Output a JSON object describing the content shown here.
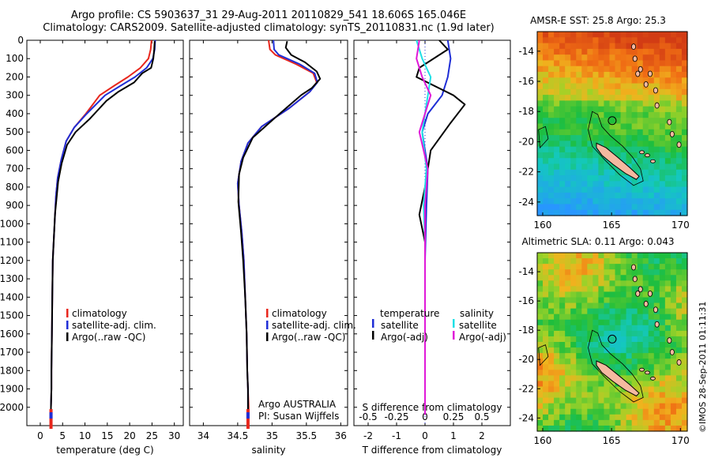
{
  "header": {
    "line1": "Argo profile: CS 5903637_31 29-Aug-2011 20110829_541 18.606S 165.046E",
    "line2": "Climatology: CARS2009. Satellite-adjusted climatology: synTS_20110831.nc (1.9d later)"
  },
  "credit": "©IMOS 28-Sep-2011 01:11:31",
  "colors": {
    "climatology": "#e8261c",
    "satellite": "#1f2ed6",
    "argo": "#000000",
    "sat_salinity": "#1fe0e6",
    "argo_salinity": "#e018d8"
  },
  "chart_data": [
    {
      "type": "line",
      "id": "temperature",
      "xlabel": "temperature (deg C)",
      "ylabel": "",
      "xlim": [
        -3,
        32
      ],
      "ylim": [
        2100,
        0
      ],
      "xticks": [
        0,
        5,
        10,
        15,
        20,
        25,
        30
      ],
      "yticks": [
        0,
        100,
        200,
        300,
        400,
        500,
        600,
        700,
        800,
        900,
        1000,
        1100,
        1200,
        1300,
        1400,
        1500,
        1600,
        1700,
        1800,
        1900,
        2000
      ],
      "legend": [
        "climatology",
        "satellite-adj. clim.",
        "Argo(..raw -QC)"
      ],
      "series": [
        {
          "name": "climatology",
          "color": "#e8261c",
          "x": [
            24.9,
            24.7,
            24.2,
            22.4,
            19.6,
            16.4,
            13.3,
            10.2,
            7.6,
            5.8,
            4.7,
            3.9,
            3.5,
            3.2,
            3.0,
            2.8,
            2.7,
            2.6,
            2.5,
            2.5,
            2.4,
            2.4
          ],
          "y": [
            0,
            50,
            100,
            150,
            200,
            250,
            300,
            400,
            475,
            550,
            650,
            750,
            850,
            1000,
            1100,
            1200,
            1400,
            1600,
            1800,
            1900,
            2000,
            2040
          ]
        },
        {
          "name": "satellite-adj. clim.",
          "color": "#1f2ed6",
          "x": [
            25.7,
            25.6,
            25.2,
            23.8,
            21.2,
            17.8,
            14.5,
            10.4,
            7.6,
            5.8,
            4.7,
            3.9,
            3.5,
            3.2,
            3.0,
            2.8,
            2.7,
            2.6,
            2.5,
            2.5,
            2.4,
            2.4
          ],
          "y": [
            0,
            50,
            100,
            150,
            200,
            250,
            300,
            400,
            475,
            550,
            650,
            750,
            850,
            1000,
            1100,
            1200,
            1400,
            1600,
            1800,
            1900,
            2000,
            2040
          ]
        },
        {
          "name": "Argo(..raw -QC)",
          "color": "#000000",
          "x": [
            25.6,
            25.5,
            25.3,
            24.8,
            22.8,
            21.0,
            17.5,
            14.8,
            11.0,
            7.9,
            6.0,
            4.8,
            4.0,
            3.3,
            3.1,
            2.8,
            2.7,
            2.6,
            2.5,
            2.5,
            2.4,
            2.4
          ],
          "y": [
            5,
            50,
            100,
            150,
            180,
            230,
            280,
            330,
            430,
            500,
            570,
            670,
            770,
            950,
            1050,
            1200,
            1400,
            1600,
            1800,
            1900,
            2000,
            2040
          ]
        }
      ]
    },
    {
      "type": "line",
      "id": "salinity",
      "xlabel": "salinity",
      "ylabel": "",
      "xlim": [
        33.8,
        36.1
      ],
      "ylim": [
        2100,
        0
      ],
      "xticks": [
        34,
        34.5,
        35,
        35.5,
        36
      ],
      "legend": [
        "climatology",
        "satellite-adj. clim.",
        "Argo(..raw -QC)"
      ],
      "annotation": [
        "Argo AUSTRALIA",
        "PI: Susan Wijffels"
      ],
      "series": [
        {
          "name": "climatology",
          "color": "#e8261c",
          "x": [
            34.95,
            34.97,
            35.05,
            35.35,
            35.6,
            35.65,
            35.55,
            35.25,
            34.85,
            34.65,
            34.55,
            34.5,
            34.52,
            34.56,
            34.59,
            34.61,
            34.63,
            34.64,
            34.65,
            34.66,
            34.66
          ],
          "y": [
            0,
            50,
            80,
            130,
            180,
            230,
            280,
            370,
            470,
            560,
            660,
            780,
            900,
            1050,
            1200,
            1400,
            1600,
            1800,
            1900,
            2000,
            2040
          ]
        },
        {
          "name": "satellite-adj. clim.",
          "color": "#1f2ed6",
          "x": [
            35.02,
            35.03,
            35.1,
            35.4,
            35.62,
            35.66,
            35.55,
            35.25,
            34.85,
            34.65,
            34.55,
            34.5,
            34.52,
            34.56,
            34.59,
            34.61,
            34.63,
            34.64,
            34.65,
            34.65,
            34.65
          ],
          "y": [
            0,
            50,
            80,
            130,
            180,
            230,
            280,
            370,
            470,
            560,
            660,
            780,
            900,
            1050,
            1200,
            1400,
            1600,
            1800,
            1900,
            2000,
            2040
          ]
        },
        {
          "name": "Argo(..raw -QC)",
          "color": "#000000",
          "x": [
            35.22,
            35.2,
            35.28,
            35.48,
            35.65,
            35.7,
            35.58,
            35.42,
            35.05,
            34.72,
            34.58,
            34.52,
            34.51,
            34.55,
            34.58,
            34.61,
            34.63,
            34.64,
            34.65,
            34.65,
            34.65
          ],
          "y": [
            5,
            40,
            80,
            120,
            170,
            210,
            260,
            300,
            420,
            530,
            640,
            730,
            880,
            1050,
            1200,
            1400,
            1600,
            1800,
            1900,
            2000,
            2040
          ]
        }
      ]
    },
    {
      "type": "line",
      "id": "difference",
      "xlabel": "T difference from climatology",
      "xlabel_top": "S difference from climatology",
      "xlim": [
        -2.5,
        3
      ],
      "ylim": [
        2100,
        0
      ],
      "xticks": [
        -2,
        -1,
        0,
        1,
        2
      ],
      "sticks_labels": [
        "-0.5",
        "-0.25",
        "0",
        "0.25",
        "0.5"
      ],
      "sticks_values": [
        -2,
        -1,
        0,
        1,
        2
      ],
      "legend_temperature": {
        "title": "temperature",
        "items": [
          "satellite",
          "Argo(-adj)"
        ]
      },
      "legend_salinity": {
        "title": "salinity",
        "items": [
          "satellite",
          "Argo(-adj)"
        ]
      },
      "series": [
        {
          "name": "T satellite",
          "color": "#1f2ed6",
          "x": [
            0.8,
            0.9,
            0.8,
            0.6,
            0.1,
            -0.1,
            0.1,
            0.05,
            0,
            0,
            0,
            0,
            0
          ],
          "y": [
            0,
            100,
            200,
            300,
            400,
            500,
            700,
            900,
            1200,
            1500,
            1800,
            2000,
            2040
          ]
        },
        {
          "name": "T Argo(-adj)",
          "color": "#000000",
          "x": [
            0.5,
            0.8,
            -0.2,
            -0.3,
            1.0,
            1.4,
            0.9,
            0.2,
            0,
            -0.2,
            0,
            0,
            0,
            0
          ],
          "y": [
            0,
            50,
            150,
            200,
            300,
            350,
            450,
            600,
            800,
            950,
            1100,
            1500,
            1900,
            2040
          ]
        },
        {
          "name": "S satellite",
          "color": "#1fe0e6",
          "x": [
            -0.3,
            -0.1,
            0.2,
            0.1,
            -0.1,
            0.05,
            -0.05,
            0,
            0,
            0,
            0
          ],
          "y": [
            0,
            100,
            200,
            300,
            500,
            700,
            900,
            1100,
            1500,
            1800,
            2040
          ]
        },
        {
          "name": "S Argo(-adj)",
          "color": "#e018d8",
          "x": [
            -0.2,
            -0.3,
            -0.1,
            0.2,
            -0.2,
            0.1,
            0,
            0,
            0,
            0
          ],
          "y": [
            0,
            100,
            200,
            300,
            500,
            700,
            900,
            1100,
            1500,
            2040
          ]
        }
      ]
    },
    {
      "type": "heatmap",
      "id": "sst_map",
      "title": "AMSR-E SST: 25.8 Argo: 25.3",
      "xlim": [
        159.6,
        170.5
      ],
      "ylim": [
        -24.9,
        -12.7
      ],
      "xticks": [
        160,
        165,
        170
      ],
      "yticks": [
        -14,
        -16,
        -18,
        -20,
        -22,
        -24
      ],
      "argo_position": {
        "lon": 165.046,
        "lat": -18.606
      }
    },
    {
      "type": "heatmap",
      "id": "sla_map",
      "title": "Altimetric SLA: 0.11 Argo: 0.043",
      "xlim": [
        159.6,
        170.5
      ],
      "ylim": [
        -24.9,
        -12.7
      ],
      "xticks": [
        160,
        165,
        170
      ],
      "yticks": [
        -14,
        -16,
        -18,
        -20,
        -22,
        -24
      ],
      "argo_position": {
        "lon": 165.046,
        "lat": -18.606
      }
    }
  ]
}
